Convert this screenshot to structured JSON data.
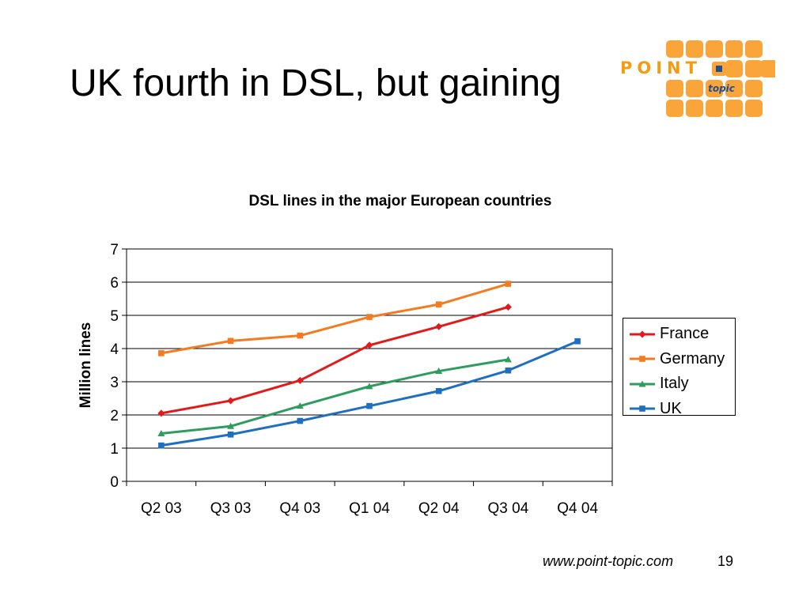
{
  "slide": {
    "title": "UK fourth in DSL, but gaining",
    "footer_url": "www.point-topic.com",
    "page_number": "19"
  },
  "logo": {
    "word": "POINT",
    "subword": "topic",
    "brand_color": "#F9A53A",
    "text_color": "#F39C12",
    "dot_color": "#1F4E96"
  },
  "chart_data": {
    "type": "line",
    "title": "DSL lines in the major European countries",
    "xlabel": "",
    "ylabel": "Million lines",
    "categories": [
      "Q2 03",
      "Q3 03",
      "Q4 03",
      "Q1 04",
      "Q2 04",
      "Q3 04",
      "Q4 04"
    ],
    "ylim": [
      0,
      7
    ],
    "yticks": [
      "0",
      "1",
      "2",
      "3",
      "4",
      "5",
      "6",
      "7"
    ],
    "grid": true,
    "legend_position": "right",
    "series": [
      {
        "name": "France",
        "color": "#E31A1C",
        "marker": "diamond",
        "values": [
          2.05,
          2.43,
          3.04,
          4.1,
          4.66,
          5.25,
          null
        ]
      },
      {
        "name": "Germany",
        "color": "#F47B20",
        "marker": "square",
        "values": [
          3.86,
          4.23,
          4.39,
          4.95,
          5.33,
          5.95,
          null
        ]
      },
      {
        "name": "Italy",
        "color": "#2E9B5F",
        "marker": "triangle",
        "values": [
          1.44,
          1.66,
          2.27,
          2.86,
          3.32,
          3.67,
          null
        ]
      },
      {
        "name": "UK",
        "color": "#1F6FC1",
        "marker": "square",
        "values": [
          1.08,
          1.41,
          1.82,
          2.27,
          2.72,
          3.34,
          4.22
        ]
      }
    ]
  }
}
